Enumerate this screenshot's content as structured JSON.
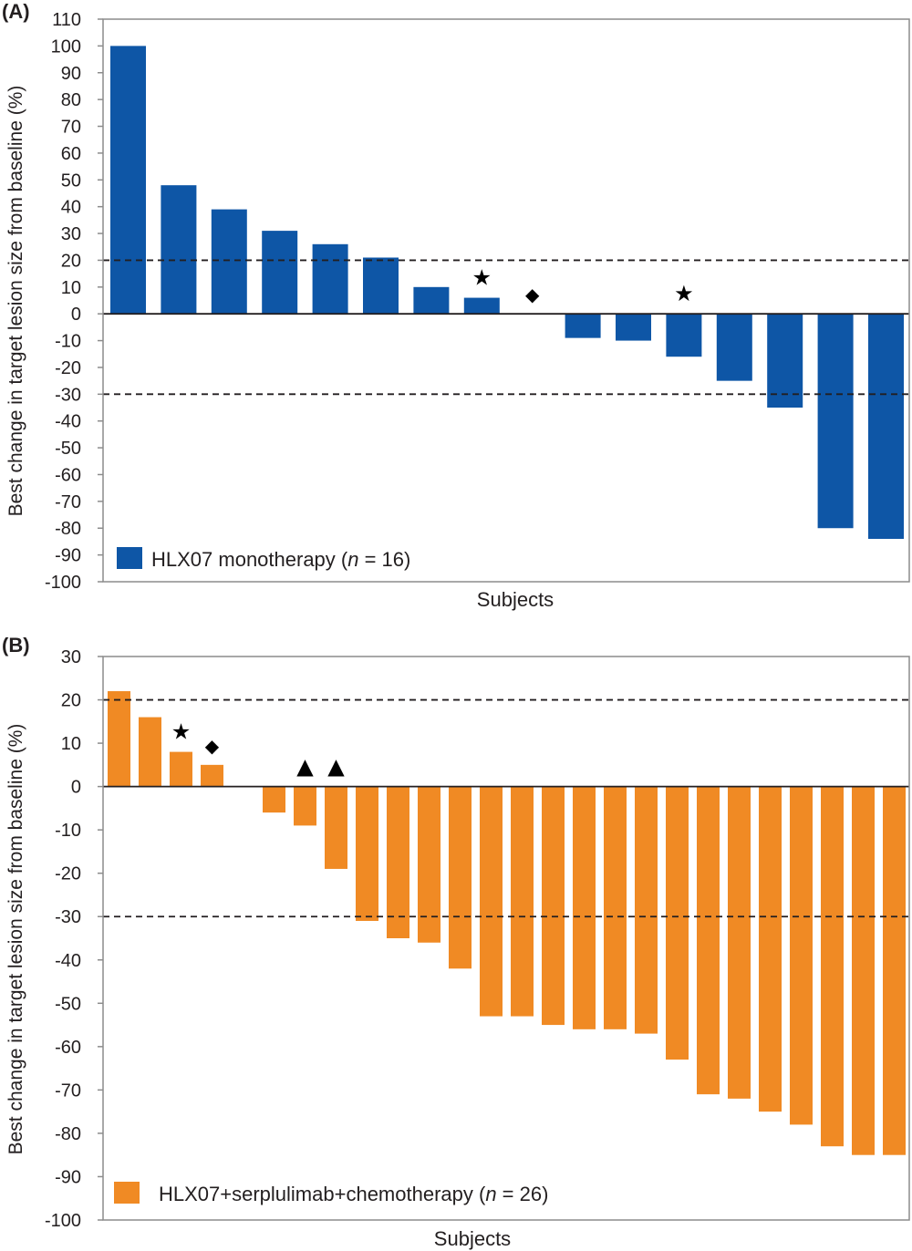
{
  "chart_data": [
    {
      "type": "bar",
      "panel_label": "(A)",
      "xlabel": "Subjects",
      "ylabel": "Best change in target lesion size from baseline (%)",
      "ylim": [
        -100,
        110
      ],
      "yticks": [
        110,
        100,
        90,
        80,
        70,
        60,
        50,
        40,
        30,
        20,
        10,
        0,
        -10,
        -20,
        -30,
        -40,
        -50,
        -60,
        -70,
        -80,
        -90,
        -100
      ],
      "reference_lines": [
        20,
        -30
      ],
      "color": "#0e56a6",
      "legend": {
        "prefix": "HLX07 monotherapy (",
        "italic": "n",
        "suffix": " = 16)"
      },
      "values": [
        100,
        48,
        39,
        31,
        26,
        21,
        10,
        6,
        null,
        -9,
        -10,
        -16,
        -25,
        -35,
        -80,
        -84
      ],
      "markers": [
        {
          "index": 7,
          "symbol": "★"
        },
        {
          "index": 8,
          "symbol": "◆"
        },
        {
          "index": 11,
          "symbol": "★"
        }
      ]
    },
    {
      "type": "bar",
      "panel_label": "(B)",
      "xlabel": "Subjects",
      "ylabel": "Best change in target lesion size from baseline (%)",
      "ylim": [
        -100,
        30
      ],
      "yticks": [
        30,
        20,
        10,
        0,
        -10,
        -20,
        -30,
        -40,
        -50,
        -60,
        -70,
        -80,
        -90,
        -100
      ],
      "reference_lines": [
        20,
        -30
      ],
      "color": "#f08a24",
      "legend": {
        "prefix": "HLX07+serplulimab+chemotherapy (",
        "italic": "n",
        "suffix": " = 26)"
      },
      "values": [
        22,
        16,
        8,
        5,
        null,
        -6,
        -9,
        -19,
        -31,
        -35,
        -36,
        -42,
        -53,
        -53,
        -55,
        -56,
        -56,
        -57,
        -63,
        -71,
        -72,
        -75,
        -78,
        -83,
        -85,
        -85
      ],
      "markers": [
        {
          "index": 2,
          "symbol": "★"
        },
        {
          "index": 3,
          "symbol": "◆"
        },
        {
          "index": 6,
          "symbol": "▲"
        },
        {
          "index": 7,
          "symbol": "▲"
        }
      ]
    }
  ]
}
